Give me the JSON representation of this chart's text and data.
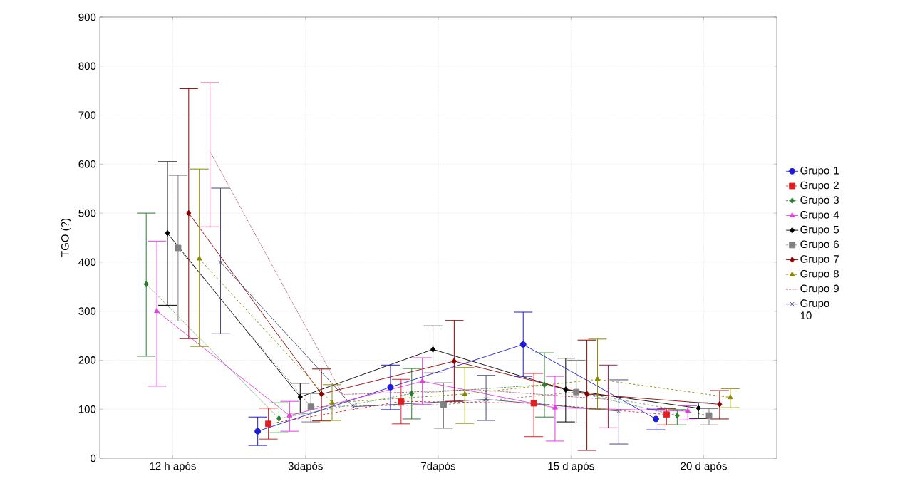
{
  "chart_data": {
    "type": "line",
    "ylabel": "TGO (?)",
    "categories": [
      "12 h após",
      "3dapós",
      "7dapós",
      "15 d após",
      "20 d após"
    ],
    "ylim": [
      0,
      900
    ],
    "yticks": [
      0,
      100,
      200,
      300,
      400,
      500,
      600,
      700,
      800,
      900
    ],
    "grid": true,
    "legend": "right",
    "series": [
      {
        "name": "Grupo 1",
        "color": "#1c1cd8",
        "marker": "circle",
        "line_style": "solid",
        "values": [
          null,
          55,
          145,
          232,
          80
        ],
        "errors": [
          null,
          [
            26,
            84
          ],
          [
            99,
            190
          ],
          [
            167,
            298
          ],
          [
            58,
            100
          ]
        ]
      },
      {
        "name": "Grupo 2",
        "color": "#e02020",
        "marker": "square",
        "line_style": "dashed",
        "values": [
          null,
          70,
          116,
          112,
          89
        ],
        "errors": [
          null,
          [
            39,
            102
          ],
          [
            70,
            161
          ],
          [
            44,
            173
          ],
          [
            68,
            101
          ]
        ]
      },
      {
        "name": "Grupo 3",
        "color": "#2e7d32",
        "marker": "diamond",
        "line_style": "dotted",
        "values": [
          355,
          81,
          132,
          150,
          87
        ],
        "errors": [
          [
            208,
            500
          ],
          [
            52,
            113
          ],
          [
            80,
            183
          ],
          [
            84,
            215
          ],
          [
            68,
            99
          ]
        ]
      },
      {
        "name": "Grupo 4",
        "color": "#e040e0",
        "marker": "triangle",
        "line_style": "solid",
        "values": [
          300,
          87,
          157,
          103,
          96
        ],
        "errors": [
          [
            147,
            443
          ],
          [
            55,
            116
          ],
          [
            110,
            205
          ],
          [
            35,
            167
          ],
          [
            78,
            107
          ]
        ]
      },
      {
        "name": "Grupo 5",
        "color": "#000000",
        "marker": "diamond",
        "line_style": "solid",
        "values": [
          459,
          125,
          222,
          140,
          102
        ],
        "errors": [
          [
            312,
            605
          ],
          [
            92,
            153
          ],
          [
            174,
            270
          ],
          [
            74,
            204
          ],
          [
            81,
            113
          ]
        ]
      },
      {
        "name": "Grupo 6",
        "color": "#808080",
        "marker": "square",
        "line_style": "dashed",
        "values": [
          429,
          105,
          109,
          135,
          87
        ],
        "errors": [
          [
            280,
            577
          ],
          [
            74,
            132
          ],
          [
            61,
            154
          ],
          [
            72,
            200
          ],
          [
            68,
            101
          ]
        ]
      },
      {
        "name": "Grupo 7",
        "color": "#8b0000",
        "marker": "diamond",
        "line_style": "solid",
        "values": [
          500,
          131,
          198,
          131,
          110
        ],
        "errors": [
          [
            244,
            754
          ],
          [
            76,
            182
          ],
          [
            116,
            281
          ],
          [
            16,
            241
          ],
          [
            80,
            138
          ]
        ]
      },
      {
        "name": "Grupo 8",
        "color": "#8a8a00",
        "marker": "triangle",
        "line_style": "dashed",
        "values": [
          407,
          113,
          131,
          161,
          124
        ],
        "errors": [
          [
            228,
            590
          ],
          [
            77,
            150
          ],
          [
            71,
            185
          ],
          [
            100,
            243
          ],
          [
            103,
            142
          ]
        ]
      },
      {
        "name": "Grupo 9",
        "color": "#a0204a",
        "marker": "none",
        "line_style": "dotted",
        "values": [
          626,
          130,
          140,
          120,
          null
        ],
        "errors": [
          [
            472,
            766
          ],
          null,
          null,
          [
            62,
            190
          ],
          null
        ]
      },
      {
        "name": "Grupo 10",
        "color": "#4a4a78",
        "marker": "cross",
        "line_style": "solid",
        "values": [
          400,
          105,
          120,
          96,
          null
        ],
        "errors": [
          [
            254,
            551
          ],
          null,
          [
            77,
            169
          ],
          [
            29,
            160
          ],
          null
        ]
      }
    ]
  }
}
